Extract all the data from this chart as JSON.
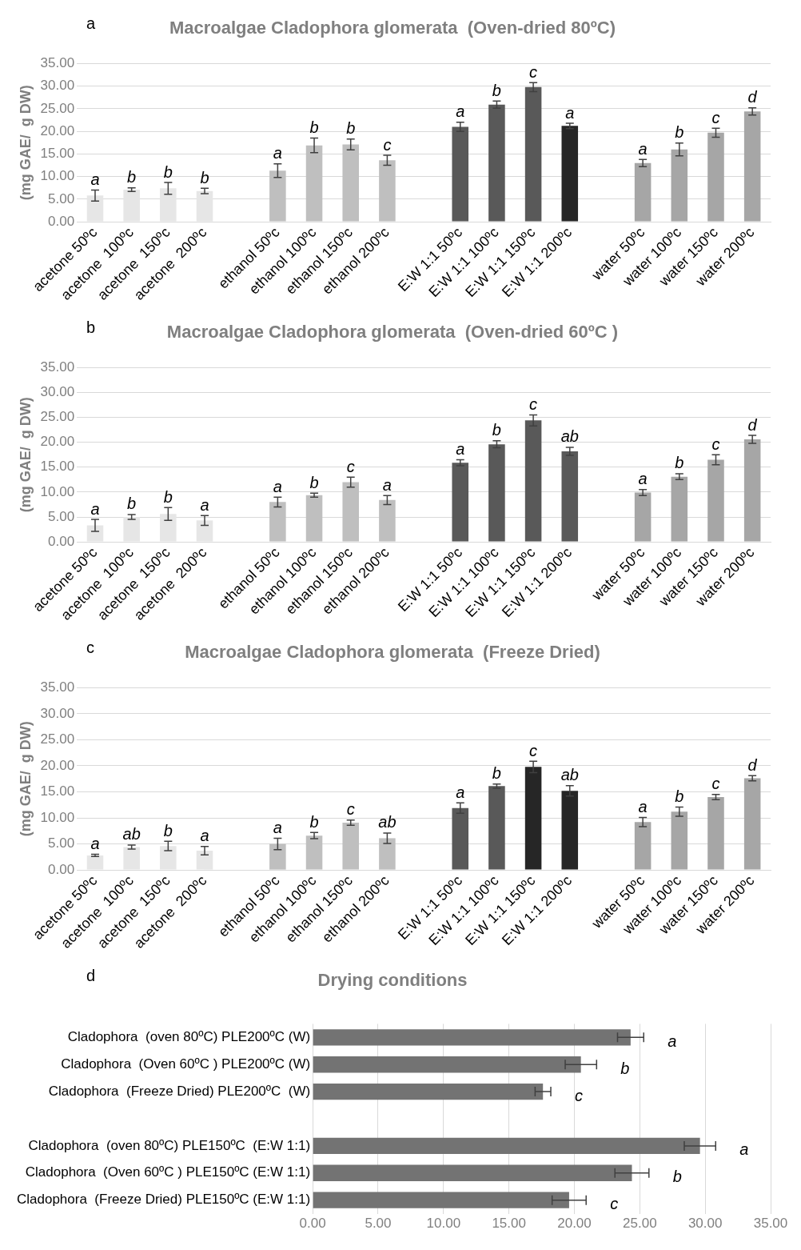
{
  "chart_data": [
    {
      "type": "bar",
      "title": "Macroalgae Cladophora glomerata  (Oven-dried 80ºC)",
      "annotations": [
        "a"
      ],
      "ylabel": "(mg GAE/  g DW)",
      "categories": [
        "acetone 50ºc",
        "acetone  100ºc",
        "acetone  150ºc",
        "acetone  200ºc",
        null,
        "ethanol 50ºc",
        "ethanol 100ºc",
        "ethanol 150ºc",
        "ethanol 200ºc",
        null,
        "E:W 1:1 50ºc",
        "E:W 1:1 100ºc",
        "E:W 1:1 150ºc",
        "E:W 1:1 200ºc",
        null,
        "water 50ºc",
        "water 100ºc",
        "water 150ºc",
        "water 200ºc"
      ],
      "values": [
        5.8,
        7.1,
        7.4,
        6.8,
        null,
        11.3,
        16.9,
        17.1,
        13.6,
        null,
        21.0,
        25.9,
        29.8,
        21.2,
        null,
        13.0,
        16.0,
        19.7,
        24.4
      ],
      "errors": [
        1.2,
        0.4,
        1.3,
        0.6,
        null,
        1.5,
        1.6,
        1.2,
        1.1,
        null,
        1.0,
        0.8,
        1.0,
        0.6,
        null,
        0.8,
        1.4,
        1.0,
        0.8
      ],
      "value_labels": [
        "a",
        "b",
        "b",
        "b",
        null,
        "a",
        "b",
        "b",
        "c",
        null,
        "a",
        "b",
        "c",
        "a",
        null,
        "a",
        "b",
        "c",
        "d"
      ],
      "colors": [
        "#e6e6e6",
        "#e6e6e6",
        "#e6e6e6",
        "#e6e6e6",
        "#ffffff",
        "#bfbfbf",
        "#bfbfbf",
        "#bfbfbf",
        "#bfbfbf",
        "#ffffff",
        "#595959",
        "#595959",
        "#595959",
        "#262626",
        "#ffffff",
        "#a6a6a6",
        "#a6a6a6",
        "#a6a6a6",
        "#a6a6a6"
      ],
      "ylim": [
        0,
        35
      ],
      "yticks": [
        {
          "value": 0,
          "label": "0.00"
        },
        {
          "value": 5,
          "label": "5.00"
        },
        {
          "value": 10,
          "label": "10.00"
        },
        {
          "value": 15,
          "label": "15.00"
        },
        {
          "value": 20,
          "label": "20.00"
        },
        {
          "value": 25,
          "label": "25.00"
        },
        {
          "value": 30,
          "label": "30.00"
        },
        {
          "value": 35,
          "label": "35.00"
        }
      ],
      "grid": "y"
    },
    {
      "type": "bar",
      "title": "Macroalgae Cladophora glomerata  (Oven-dried 60ºC )",
      "annotations": [
        "b"
      ],
      "ylabel": "(mg GAE/  g DW)",
      "categories": [
        "acetone 50ºc",
        "acetone  100ºc",
        "acetone  150ºc",
        "acetone  200ºc",
        null,
        "ethanol 50ºc",
        "ethanol 100ºc",
        "ethanol 150ºc",
        "ethanol 200ºc",
        null,
        "E:W 1:1 50ºc",
        "E:W 1:1 100ºc",
        "E:W 1:1 150ºc",
        "E:W 1:1 200ºc",
        null,
        "water 50ºc",
        "water 100ºc",
        "water 150ºc",
        "water 200ºc"
      ],
      "values": [
        3.3,
        5.0,
        5.6,
        4.3,
        null,
        8.0,
        9.4,
        12.0,
        8.4,
        null,
        15.9,
        19.6,
        24.4,
        18.2,
        null,
        9.9,
        13.1,
        16.5,
        20.6
      ],
      "errors": [
        1.2,
        0.5,
        1.3,
        1.0,
        null,
        1.0,
        0.4,
        1.0,
        0.9,
        null,
        0.6,
        0.7,
        1.1,
        0.8,
        null,
        0.6,
        0.6,
        1.0,
        0.8
      ],
      "value_labels": [
        "a",
        "b",
        "b",
        "a",
        null,
        "a",
        "b",
        "c",
        "a",
        null,
        "a",
        "b",
        "c",
        "ab",
        null,
        "a",
        "b",
        "c",
        "d"
      ],
      "colors": [
        "#e6e6e6",
        "#e6e6e6",
        "#e6e6e6",
        "#e6e6e6",
        "#ffffff",
        "#bfbfbf",
        "#bfbfbf",
        "#bfbfbf",
        "#bfbfbf",
        "#ffffff",
        "#595959",
        "#595959",
        "#595959",
        "#595959",
        "#ffffff",
        "#a6a6a6",
        "#a6a6a6",
        "#a6a6a6",
        "#a6a6a6"
      ],
      "ylim": [
        0,
        35
      ],
      "yticks": [
        {
          "value": 0,
          "label": "0.00"
        },
        {
          "value": 5,
          "label": "5.00"
        },
        {
          "value": 10,
          "label": "10.00"
        },
        {
          "value": 15,
          "label": "15.00"
        },
        {
          "value": 20,
          "label": "20.00"
        },
        {
          "value": 25,
          "label": "25.00"
        },
        {
          "value": 30,
          "label": "30.00"
        },
        {
          "value": 35,
          "label": "35.00"
        }
      ],
      "grid": "y"
    },
    {
      "type": "bar",
      "title": "Macroalgae Cladophora glomerata  (Freeze Dried)",
      "annotations": [
        "c"
      ],
      "ylabel": "(mg GAE/  g DW)",
      "categories": [
        "acetone 50ºc",
        "acetone  100ºc",
        "acetone  150ºc",
        "acetone  200ºc",
        null,
        "ethanol 50ºc",
        "ethanol 100ºc",
        "ethanol 150ºc",
        "ethanol 200ºc",
        null,
        "E:W 1:1 50ºc",
        "E:W 1:1 100ºc",
        "E:W 1:1 150ºc",
        "E:W 1:1 200ºc",
        null,
        "water 50ºc",
        "water 100ºc",
        "water 150ºc",
        "water 200ºc"
      ],
      "values": [
        2.8,
        4.4,
        4.6,
        3.7,
        null,
        5.0,
        6.6,
        9.1,
        6.1,
        null,
        11.9,
        16.1,
        19.8,
        15.2,
        null,
        9.2,
        11.2,
        14.0,
        17.6
      ],
      "errors": [
        0.2,
        0.4,
        0.9,
        0.8,
        null,
        1.1,
        0.6,
        0.5,
        1.0,
        null,
        1.0,
        0.4,
        1.1,
        1.0,
        null,
        0.9,
        0.9,
        0.5,
        0.5
      ],
      "value_labels": [
        "a",
        "ab",
        "b",
        "a",
        null,
        "a",
        "b",
        "c",
        "ab",
        null,
        "a",
        "b",
        "c",
        "ab",
        null,
        "a",
        "b",
        "c",
        "d"
      ],
      "colors": [
        "#e6e6e6",
        "#e6e6e6",
        "#e6e6e6",
        "#e6e6e6",
        "#ffffff",
        "#bfbfbf",
        "#bfbfbf",
        "#bfbfbf",
        "#bfbfbf",
        "#ffffff",
        "#595959",
        "#595959",
        "#262626",
        "#262626",
        "#ffffff",
        "#a6a6a6",
        "#a6a6a6",
        "#a6a6a6",
        "#a6a6a6"
      ],
      "ylim": [
        0,
        35
      ],
      "yticks": [
        {
          "value": 0,
          "label": "0.00"
        },
        {
          "value": 5,
          "label": "5.00"
        },
        {
          "value": 10,
          "label": "10.00"
        },
        {
          "value": 15,
          "label": "15.00"
        },
        {
          "value": 20,
          "label": "20.00"
        },
        {
          "value": 25,
          "label": "25.00"
        },
        {
          "value": 30,
          "label": "30.00"
        },
        {
          "value": 35,
          "label": "35.00"
        }
      ],
      "grid": "y"
    },
    {
      "type": "bar",
      "orientation": "horizontal",
      "title": "Drying conditions",
      "annotations": [
        "d"
      ],
      "categories": [
        "Cladophora  (oven 80ºC) PLE200ºC (W)",
        "Cladophora  (Oven 60ºC ) PLE200ºC (W)",
        "Cladophora  (Freeze Dried) PLE200ºC  (W)",
        null,
        "Cladophora  (oven 80ºC) PLE150ºC  (E:W 1:1)",
        "Cladophora  (Oven 60ºC ) PLE150ºC (E:W 1:1)",
        "Cladophora  (Freeze Dried) PLE150ºC (E:W 1:1)"
      ],
      "values": [
        24.3,
        20.5,
        17.6,
        null,
        29.6,
        24.4,
        19.6
      ],
      "errors": [
        1.0,
        1.2,
        0.6,
        null,
        1.2,
        1.3,
        1.3
      ],
      "value_labels": [
        "a",
        "b",
        "c",
        null,
        "a",
        "b",
        "c"
      ],
      "color": "#737373",
      "xlim": [
        0,
        35
      ],
      "xticks": [
        {
          "value": 0,
          "label": "0.00"
        },
        {
          "value": 5,
          "label": "5.00"
        },
        {
          "value": 10,
          "label": "10.00"
        },
        {
          "value": 15,
          "label": "15.00"
        },
        {
          "value": 20,
          "label": "20.00"
        },
        {
          "value": 25,
          "label": "25.00"
        },
        {
          "value": 30,
          "label": "30.00"
        },
        {
          "value": 35,
          "label": "35.00"
        }
      ],
      "grid": "x"
    }
  ]
}
